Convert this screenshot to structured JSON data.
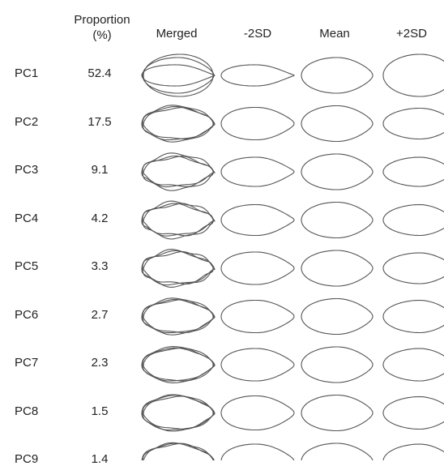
{
  "headers": {
    "proportion": "Proportion\n(%)",
    "proportion_line1": "Proportion",
    "proportion_line2": "(%)",
    "merged": "Merged",
    "minus": "-2SD",
    "mean": "Mean",
    "plus": "+2SD"
  },
  "rows": [
    {
      "label": "PC1",
      "value": "52.4"
    },
    {
      "label": "PC2",
      "value": "17.5"
    },
    {
      "label": "PC3",
      "value": "9.1"
    },
    {
      "label": "PC4",
      "value": "4.2"
    },
    {
      "label": "PC5",
      "value": "3.3"
    },
    {
      "label": "PC6",
      "value": "2.7"
    },
    {
      "label": "PC7",
      "value": "2.3"
    },
    {
      "label": "PC8",
      "value": "1.5"
    },
    {
      "label": "PC9",
      "value": "1.4"
    }
  ],
  "colors": {
    "outline": "#555555",
    "text": "#222222"
  }
}
